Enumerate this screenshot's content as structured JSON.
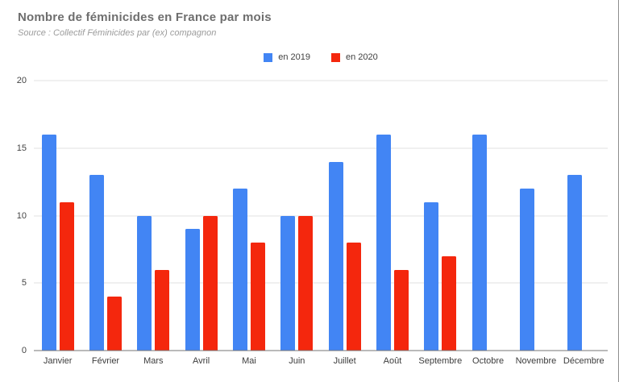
{
  "header": {
    "title": "Nombre de féminicides en France par mois",
    "subtitle": "Source : Collectif Féminicides par (ex) compagnon"
  },
  "colors": {
    "series_2019": "#4285F4",
    "series_2020": "#F4270D",
    "gridline": "#e2e2e2",
    "baseline": "#757575",
    "title_text": "#6e6e6e",
    "subtitle_text": "#9b9b9b",
    "axis_text": "#3c3c3c"
  },
  "chart_data": {
    "type": "bar",
    "title": "Nombre de féminicides en France par mois",
    "subtitle": "Source : Collectif Féminicides par (ex) compagnon",
    "categories": [
      "Janvier",
      "Février",
      "Mars",
      "Avril",
      "Mai",
      "Juin",
      "Juillet",
      "Août",
      "Septembre",
      "Octobre",
      "Novembre",
      "Décembre"
    ],
    "series": [
      {
        "name": "en 2019",
        "color": "#4285F4",
        "values": [
          16,
          13,
          10,
          9,
          12,
          10,
          14,
          16,
          11,
          16,
          12,
          13
        ]
      },
      {
        "name": "en 2020",
        "color": "#F4270D",
        "values": [
          11,
          4,
          6,
          10,
          8,
          10,
          8,
          6,
          7,
          null,
          null,
          null
        ]
      }
    ],
    "xlabel": "",
    "ylabel": "",
    "ylim": [
      0,
      20
    ],
    "yticks": [
      0,
      5,
      10,
      15,
      20
    ],
    "grid": true,
    "legend_position": "top-center"
  }
}
